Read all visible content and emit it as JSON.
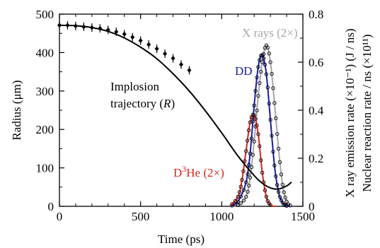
{
  "chart_data": {
    "type": "line",
    "xlabel": "Time (ps)",
    "ylabel_left": "Radius (μm)",
    "ylabel_right_1": "X ray emission rate  (×10⁻¹) (J / ns)",
    "ylabel_right_2": "Nuclear reaction rate / ns (×10¹¹)",
    "xlim": [
      0,
      1500
    ],
    "ylim_left": [
      0,
      500
    ],
    "ylim_right": [
      0,
      0.8
    ],
    "x_ticks": [
      "0",
      "500",
      "1000",
      "1500"
    ],
    "y_left_ticks": [
      "0",
      "100",
      "200",
      "300",
      "400",
      "500"
    ],
    "y_right_ticks": [
      "0",
      "0.2",
      "0.4",
      "0.6",
      "0.8"
    ],
    "annotations": {
      "implosion_line1": "Implosion",
      "implosion_line2": "trajectory (",
      "implosion_var": "R",
      "implosion_close": ")",
      "dd": "DD",
      "xrays": "X rays (2×)",
      "d3he_pre": "D",
      "d3he_sup": "3",
      "d3he_post": "He (2×)"
    },
    "colors": {
      "trajectory": "#000000",
      "dd": "#1a1aa6",
      "xrays": "#a6a6a6",
      "d3he": "#d9261c"
    },
    "series": [
      {
        "axis": "left",
        "x": [
          0,
          100,
          200,
          300,
          400,
          500,
          600,
          700,
          800,
          900,
          1000,
          1100,
          1200,
          1250,
          1300,
          1350,
          1400,
          1430
        ],
        "values": [
          471,
          470,
          465,
          455,
          438,
          414,
          384,
          345,
          300,
          248,
          191,
          131,
          80,
          60,
          48,
          45,
          53,
          63
        ]
      },
      {
        "axis": "left",
        "markers": "diamond-errorbar",
        "x": [
          0,
          50,
          100,
          150,
          200,
          250,
          300,
          350,
          400,
          450,
          500,
          550,
          600,
          650,
          700,
          750,
          800
        ],
        "values": [
          471,
          471,
          469,
          467,
          465,
          463,
          459,
          454,
          448,
          440,
          431,
          421,
          410,
          397,
          385,
          369,
          354
        ]
      },
      {
        "axis": "right",
        "x": [
          1050,
          1100,
          1150,
          1175,
          1200,
          1225,
          1250,
          1275,
          1300,
          1325,
          1350,
          1375,
          1400,
          1420
        ],
        "values": [
          0,
          0.02,
          0.1,
          0.22,
          0.42,
          0.58,
          0.63,
          0.55,
          0.36,
          0.17,
          0.06,
          0.015,
          0.002,
          0
        ]
      },
      {
        "axis": "right",
        "x": [
          1050,
          1100,
          1150,
          1175,
          1200,
          1225,
          1250,
          1275,
          1300,
          1325,
          1350,
          1375,
          1400,
          1430
        ],
        "values": [
          0,
          0.005,
          0.04,
          0.12,
          0.27,
          0.46,
          0.6,
          0.67,
          0.6,
          0.43,
          0.24,
          0.09,
          0.02,
          0
        ]
      },
      {
        "axis": "right",
        "x": [
          1050,
          1100,
          1125,
          1150,
          1175,
          1200,
          1225,
          1250,
          1275,
          1300,
          1330
        ],
        "values": [
          0,
          0.04,
          0.11,
          0.23,
          0.35,
          0.38,
          0.3,
          0.14,
          0.04,
          0.005,
          0
        ]
      }
    ]
  }
}
